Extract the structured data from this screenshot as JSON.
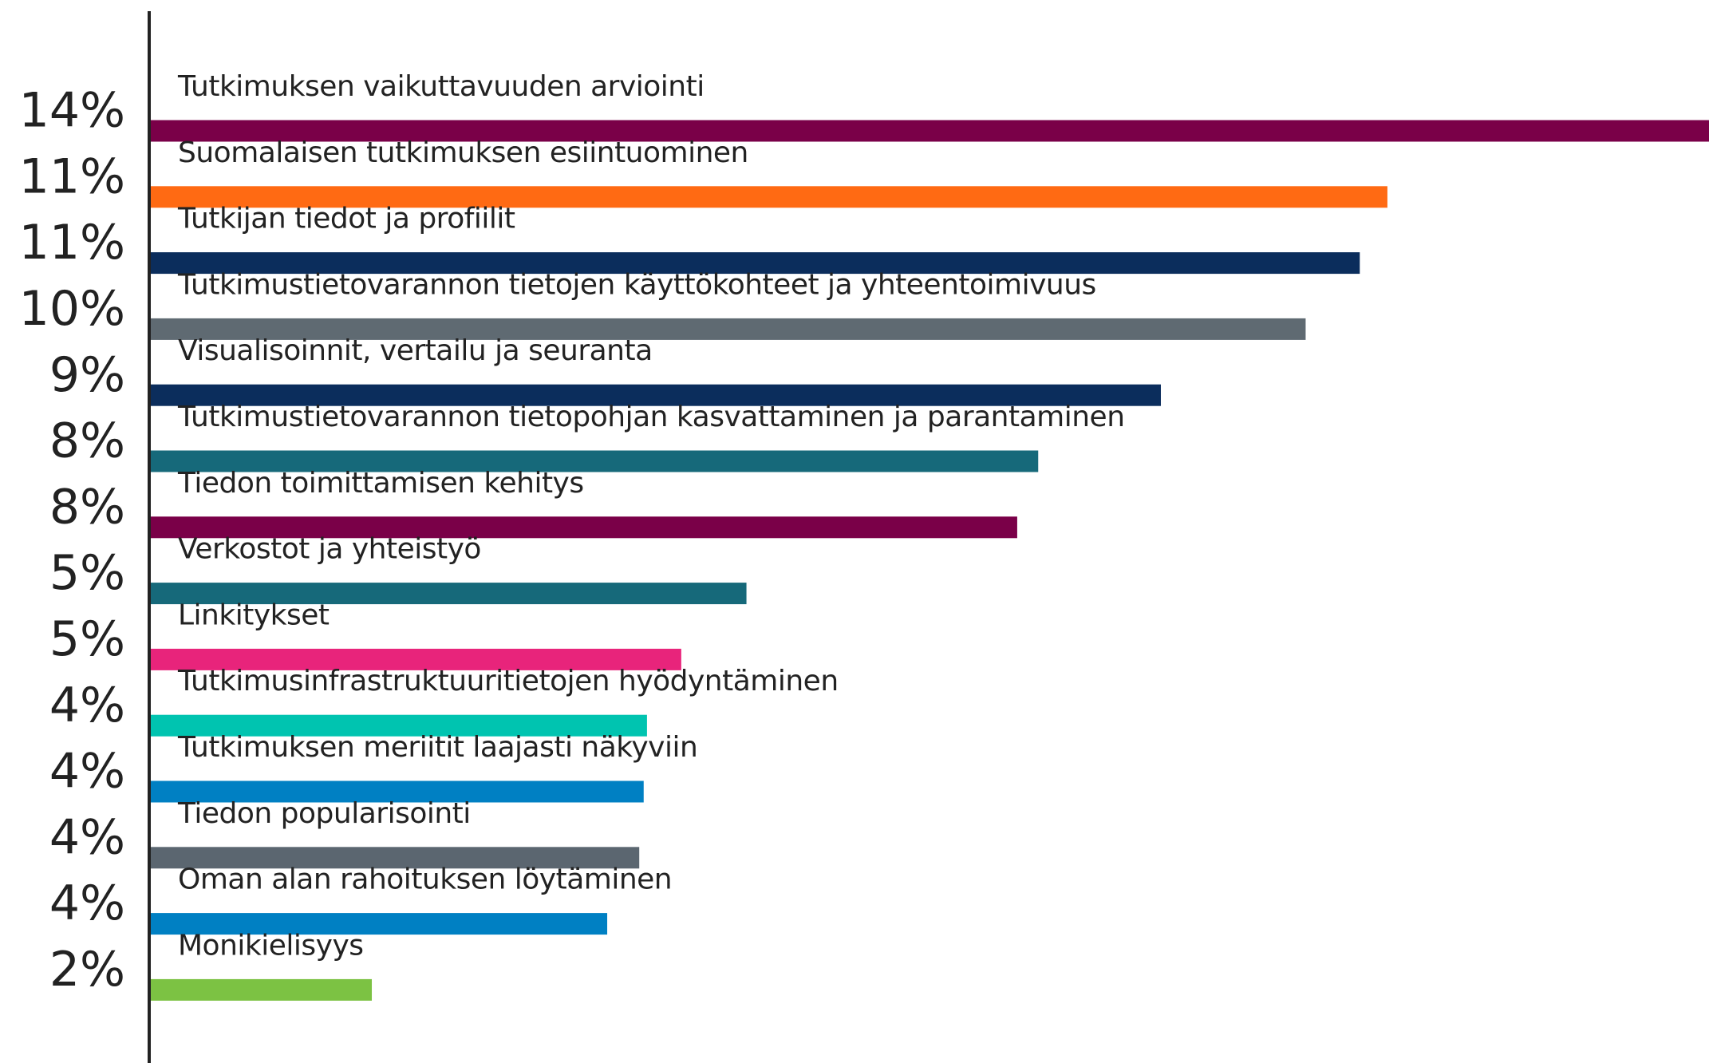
{
  "chart_data": {
    "type": "bar",
    "orientation": "horizontal",
    "categories": [
      "Tutkimuksen vaikuttavuuden arviointi",
      "Suomalaisen tutkimuksen esiintuominen",
      "Tutkijan tiedot ja profiilit",
      "Tutkimustietovarannon tietojen käyttökohteet ja yhteentoimivuus",
      "Visualisoinnit, vertailu ja seuranta",
      "Tutkimustietovarannon tietopohjan kasvattaminen ja parantaminen",
      "Tiedon toimittamisen kehitys",
      "Verkostot ja yhteistyö",
      "Linkitykset",
      "Tutkimusinfrastruktuuritietojen hyödyntäminen",
      "Tutkimuksen meriitit laajasti näkyviin",
      "Tiedon popularisointi",
      "Oman alan rahoituksen löytäminen",
      "Monikielisyys"
    ],
    "values": [
      14.1,
      11.19,
      10.94,
      10.45,
      9.14,
      8.03,
      7.84,
      5.39,
      4.8,
      4.49,
      4.46,
      4.42,
      4.13,
      2.0
    ],
    "value_labels": [
      "14%",
      "11%",
      "11%",
      "10%",
      "9%",
      "8%",
      "8%",
      "5%",
      "5%",
      "4%",
      "4%",
      "4%",
      "4%",
      "2%"
    ],
    "colors": [
      "#7a0048",
      "#ff6a13",
      "#0b2d5c",
      "#5f6a72",
      "#0b2d5c",
      "#16697a",
      "#7a0048",
      "#16697a",
      "#e8247b",
      "#00c4b0",
      "#0080c3",
      "#5b6670",
      "#0080c3",
      "#7cc243"
    ],
    "xlim": [
      0,
      14.1
    ]
  }
}
